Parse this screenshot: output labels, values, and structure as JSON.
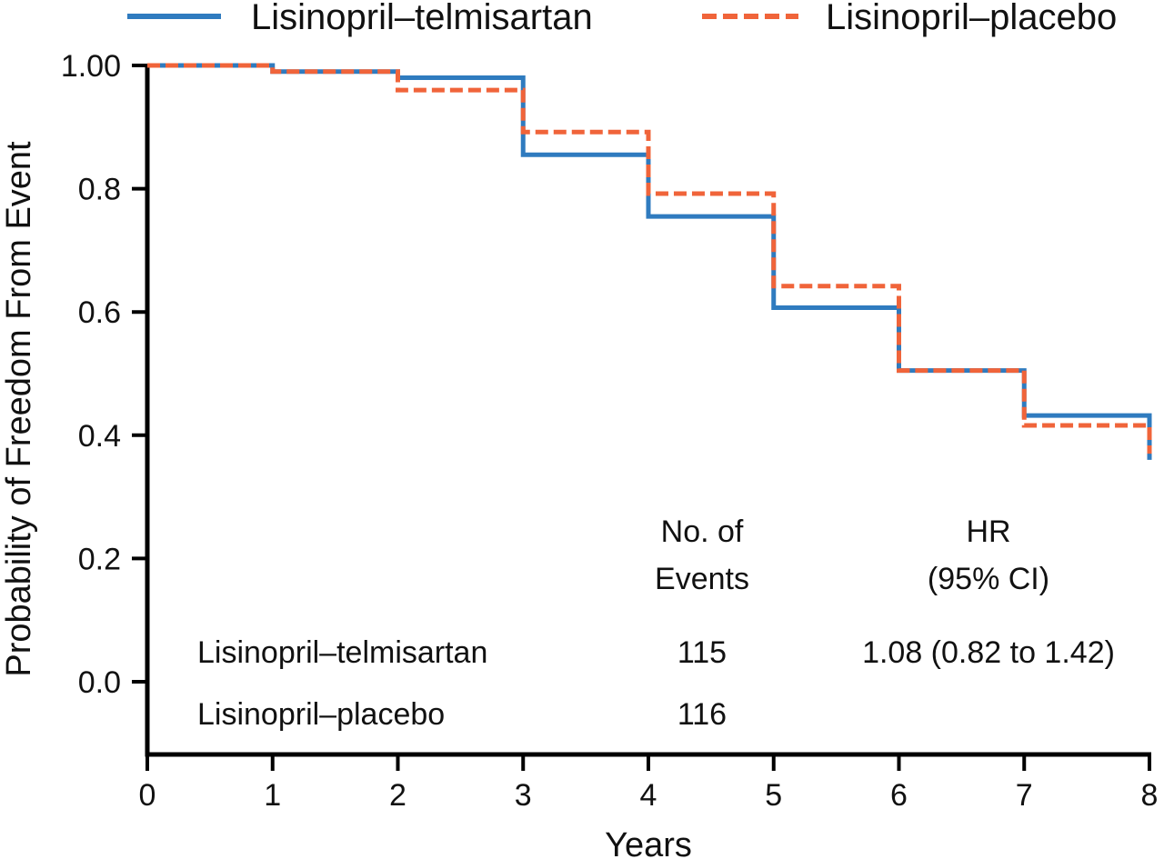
{
  "chart_data": {
    "type": "line",
    "subtype": "kaplan-meier step",
    "xlabel": "Years",
    "ylabel": "Probability of Freedom From Event",
    "xlim": [
      0,
      8
    ],
    "ylim": [
      -0.12,
      1.0
    ],
    "x_ticks": [
      0,
      1,
      2,
      3,
      4,
      5,
      6,
      7,
      8
    ],
    "x_tick_labels": [
      "0",
      "1",
      "2",
      "3",
      "4",
      "5",
      "6",
      "7",
      "8"
    ],
    "y_ticks": [
      1.0,
      0.8,
      0.6,
      0.4,
      0.2,
      0.0
    ],
    "y_tick_labels": [
      "1.00",
      "0.8",
      "0.6",
      "0.4",
      "0.2",
      "0.0"
    ],
    "legend": {
      "placement": "top",
      "entries": [
        {
          "name": "Lisinopril–telmisartan",
          "style": "solid"
        },
        {
          "name": "Lisinopril–placebo",
          "style": "dashed"
        }
      ]
    },
    "series": [
      {
        "name": "Lisinopril–telmisartan",
        "color": "#2f7bbf",
        "style": "solid",
        "x": [
          0,
          1,
          2,
          3,
          4,
          5,
          6,
          7,
          8,
          8
        ],
        "y": [
          1.0,
          0.99,
          0.98,
          0.855,
          0.755,
          0.607,
          0.505,
          0.432,
          0.432,
          0.36
        ]
      },
      {
        "name": "Lisinopril–placebo",
        "color": "#f0643a",
        "style": "dashed",
        "x": [
          0,
          1,
          2,
          3,
          4,
          5,
          6,
          7,
          8,
          8
        ],
        "y": [
          1.0,
          0.99,
          0.96,
          0.892,
          0.792,
          0.642,
          0.505,
          0.416,
          0.416,
          0.37
        ]
      }
    ],
    "annotation_table": {
      "headers": [
        {
          "lines": [
            "No. of",
            "Events"
          ]
        },
        {
          "lines": [
            "HR",
            "(95% CI)"
          ]
        }
      ],
      "rows": [
        {
          "label": "Lisinopril–telmisartan",
          "events": "115",
          "hr": "1.08 (0.82 to 1.42)"
        },
        {
          "label": "Lisinopril–placebo",
          "events": "116",
          "hr": ""
        }
      ]
    }
  }
}
